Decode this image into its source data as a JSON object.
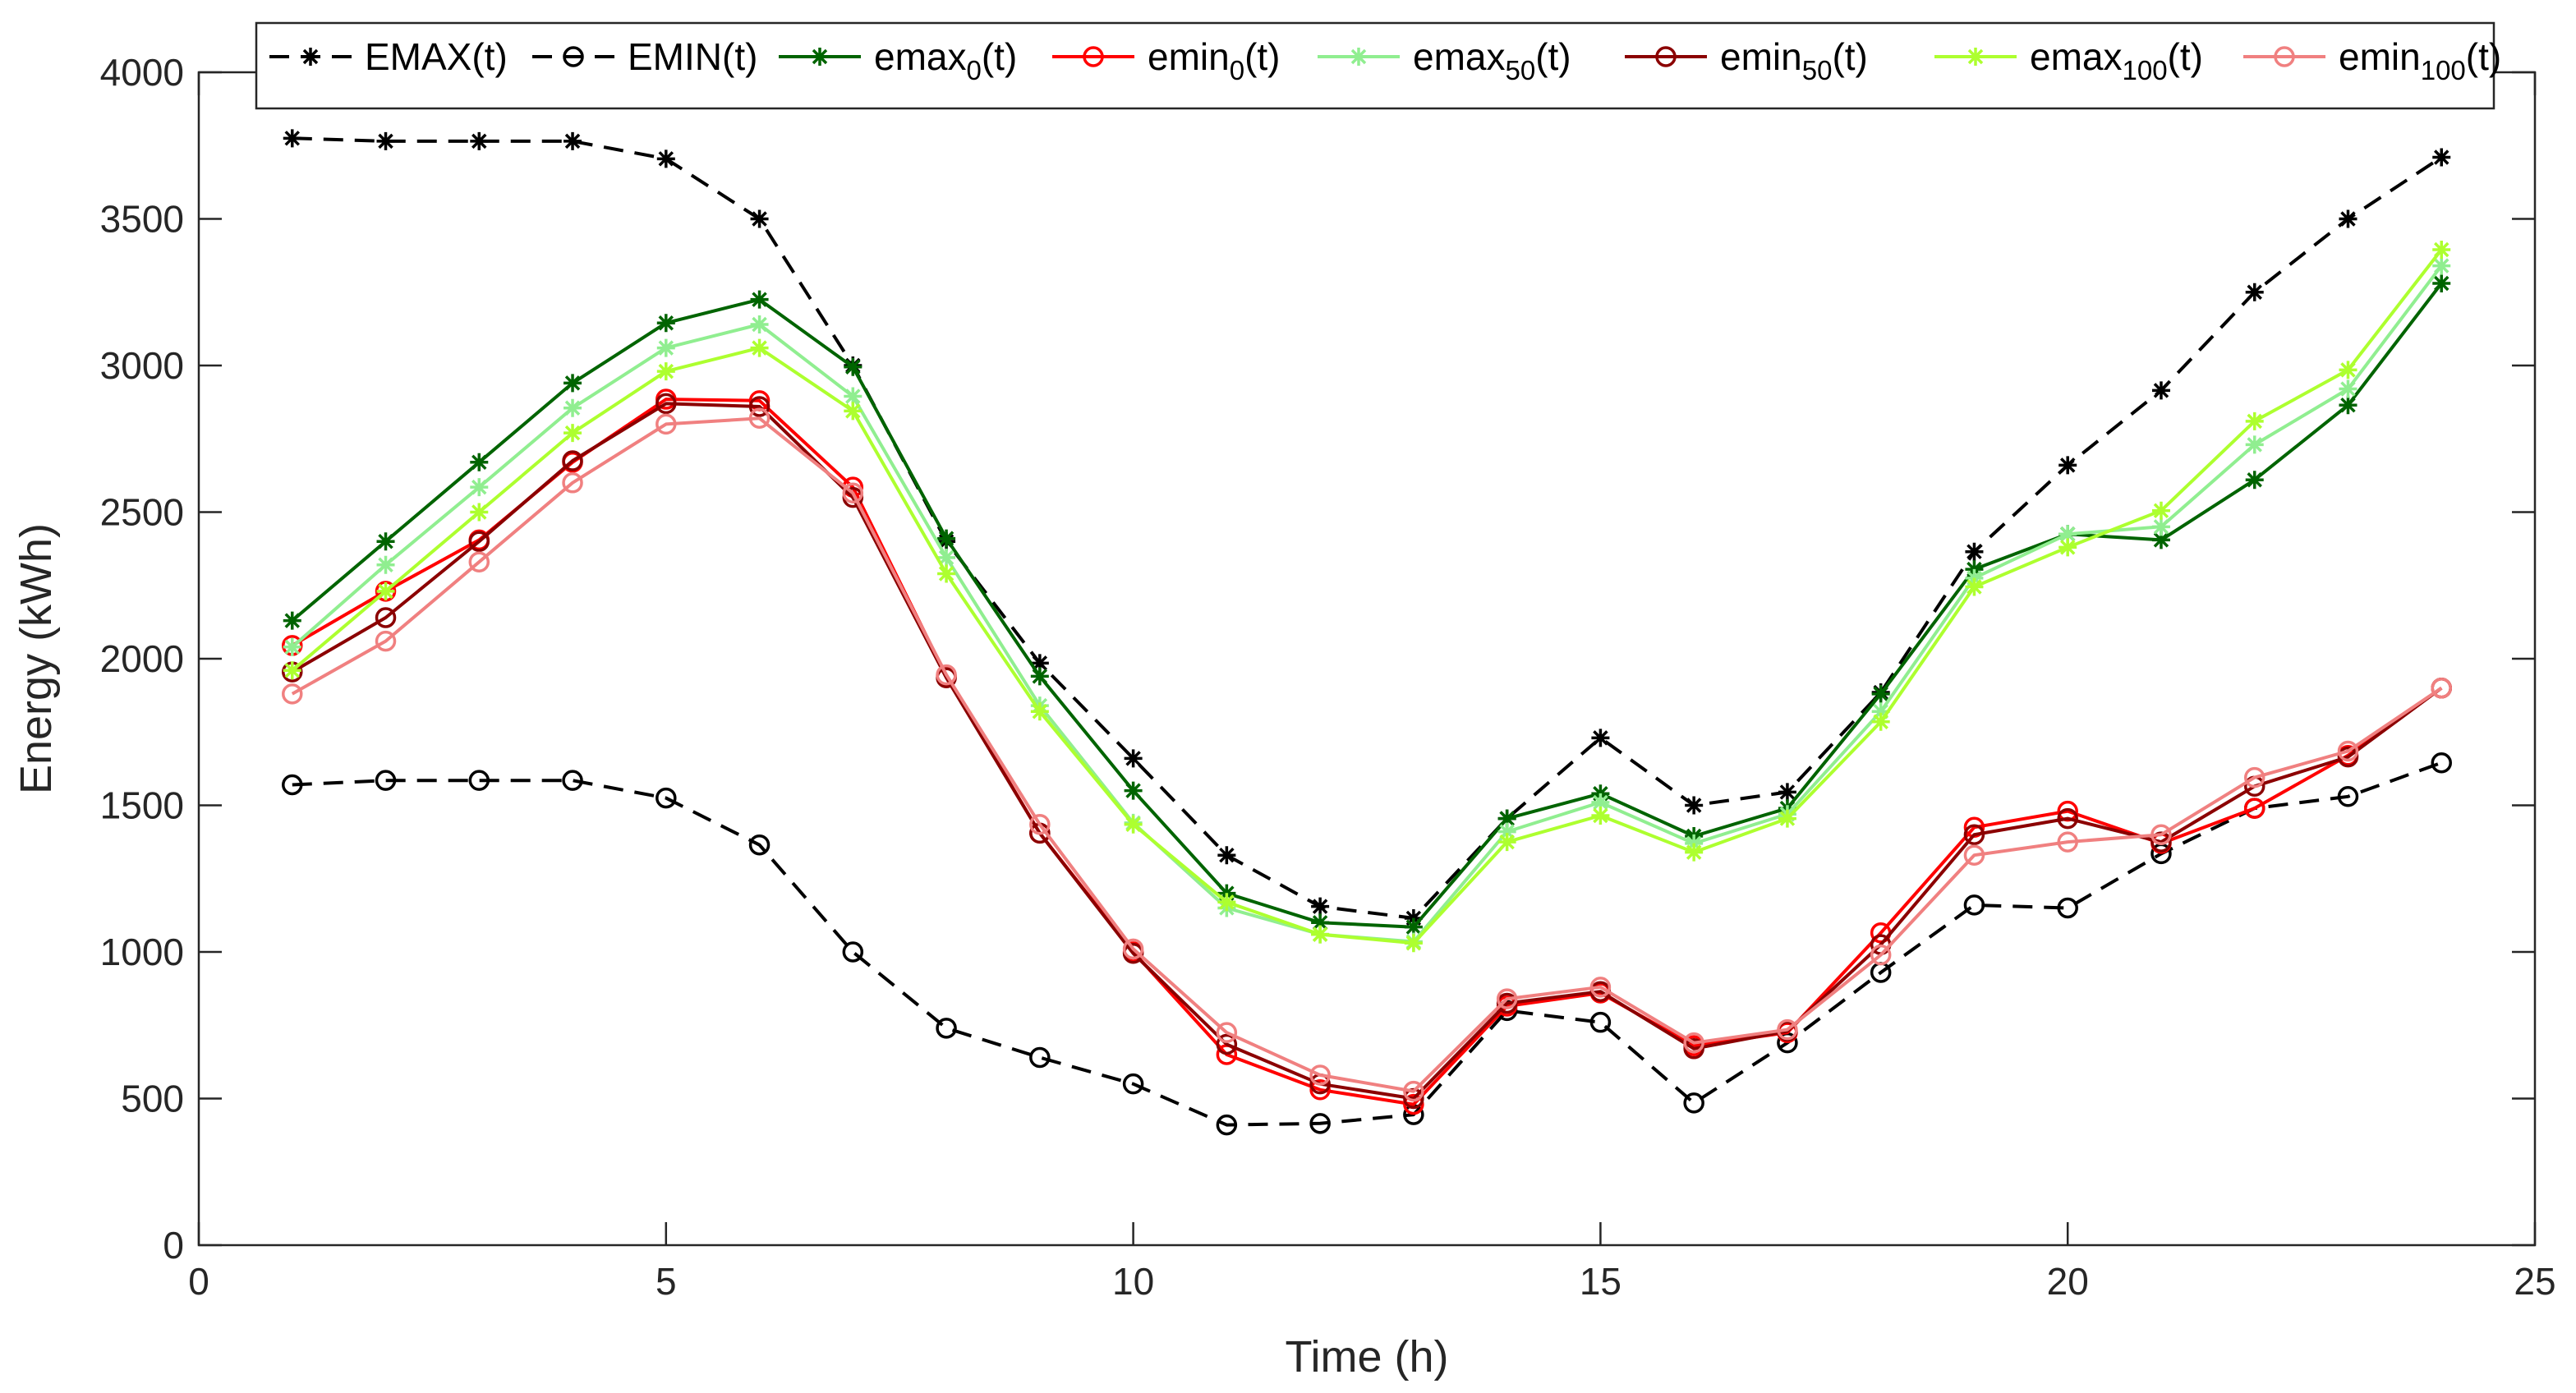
{
  "chart_data": {
    "type": "line",
    "title": "",
    "xlabel": "Time (h)",
    "ylabel": "Energy (kWh)",
    "xlim": [
      0,
      25
    ],
    "ylim": [
      0,
      4000
    ],
    "xticks": [
      "0",
      "5",
      "10",
      "15",
      "20",
      "25"
    ],
    "yticks": [
      "0",
      "500",
      "1000",
      "1500",
      "2000",
      "2500",
      "3000",
      "3500",
      "4000"
    ],
    "grid": false,
    "legend_position": "top",
    "x": [
      1,
      2,
      3,
      4,
      5,
      6,
      7,
      8,
      9,
      10,
      11,
      12,
      13,
      14,
      15,
      16,
      17,
      18,
      19,
      20,
      21,
      22,
      23,
      24
    ],
    "series": [
      {
        "name": "EMAX(t)",
        "label_main": "EMAX(t)",
        "label_sub": "",
        "label_tail": "",
        "color": "#000000",
        "dash": "dashed",
        "marker": "asterisk",
        "values": [
          3775,
          3765,
          3765,
          3765,
          3705,
          3500,
          3000,
          2400,
          1985,
          1660,
          1330,
          1155,
          1115,
          1455,
          1730,
          1500,
          1545,
          1885,
          2365,
          2660,
          2915,
          3250,
          3500,
          3710
        ]
      },
      {
        "name": "EMIN(t)",
        "label_main": "EMIN(t)",
        "label_sub": "",
        "label_tail": "",
        "color": "#000000",
        "dash": "dashed",
        "marker": "circle",
        "values": [
          1570,
          1585,
          1585,
          1585,
          1525,
          1365,
          1000,
          740,
          640,
          550,
          410,
          415,
          445,
          800,
          760,
          485,
          690,
          930,
          1160,
          1150,
          1335,
          1490,
          1530,
          1645
        ]
      },
      {
        "name": "emax_0(t)",
        "label_main": "emax",
        "label_sub": "0",
        "label_tail": "(t)",
        "color": "#006400",
        "dash": "solid",
        "marker": "asterisk",
        "values": [
          2130,
          2400,
          2670,
          2940,
          3145,
          3225,
          2995,
          2410,
          1940,
          1550,
          1200,
          1100,
          1085,
          1455,
          1540,
          1395,
          1490,
          1880,
          2305,
          2425,
          2405,
          2610,
          2865,
          3280
        ]
      },
      {
        "name": "emin_0(t)",
        "label_main": "emin",
        "label_sub": "0",
        "label_tail": "(t)",
        "color": "#ff0000",
        "dash": "solid",
        "marker": "circle",
        "values": [
          2045,
          2230,
          2405,
          2670,
          2885,
          2880,
          2585,
          1940,
          1405,
          1000,
          650,
          530,
          480,
          815,
          860,
          680,
          725,
          1065,
          1425,
          1480,
          1370,
          1490,
          1670,
          1900
        ]
      },
      {
        "name": "emax_50(t)",
        "label_main": "emax",
        "label_sub": "50",
        "label_tail": "(t)",
        "color": "#90ee90",
        "dash": "solid",
        "marker": "asterisk",
        "values": [
          2040,
          2320,
          2585,
          2855,
          3060,
          3140,
          2895,
          2345,
          1840,
          1440,
          1150,
          1060,
          1035,
          1410,
          1510,
          1370,
          1470,
          1820,
          2275,
          2425,
          2450,
          2730,
          2920,
          3340
        ]
      },
      {
        "name": "emin_50(t)",
        "label_main": "emin",
        "label_sub": "50",
        "label_tail": "(t)",
        "color": "#8b0000",
        "dash": "solid",
        "marker": "circle",
        "values": [
          1955,
          2140,
          2400,
          2675,
          2870,
          2860,
          2550,
          1935,
          1405,
          995,
          685,
          550,
          500,
          825,
          865,
          670,
          730,
          1025,
          1400,
          1455,
          1375,
          1565,
          1665,
          1900
        ]
      },
      {
        "name": "emax_100(t)",
        "label_main": "emax",
        "label_sub": "100",
        "label_tail": "(t)",
        "color": "#adff2f",
        "dash": "solid",
        "marker": "asterisk",
        "values": [
          1960,
          2230,
          2500,
          2770,
          2980,
          3060,
          2845,
          2290,
          1820,
          1435,
          1170,
          1060,
          1030,
          1375,
          1465,
          1340,
          1455,
          1785,
          2245,
          2380,
          2505,
          2810,
          2985,
          3395
        ]
      },
      {
        "name": "emin_100(t)",
        "label_main": "emin",
        "label_sub": "100",
        "label_tail": "(t)",
        "color": "#f08080",
        "dash": "solid",
        "marker": "circle",
        "values": [
          1880,
          2060,
          2330,
          2600,
          2800,
          2820,
          2565,
          1945,
          1435,
          1010,
          725,
          580,
          525,
          840,
          880,
          690,
          735,
          990,
          1330,
          1375,
          1400,
          1595,
          1685,
          1900
        ]
      }
    ]
  }
}
